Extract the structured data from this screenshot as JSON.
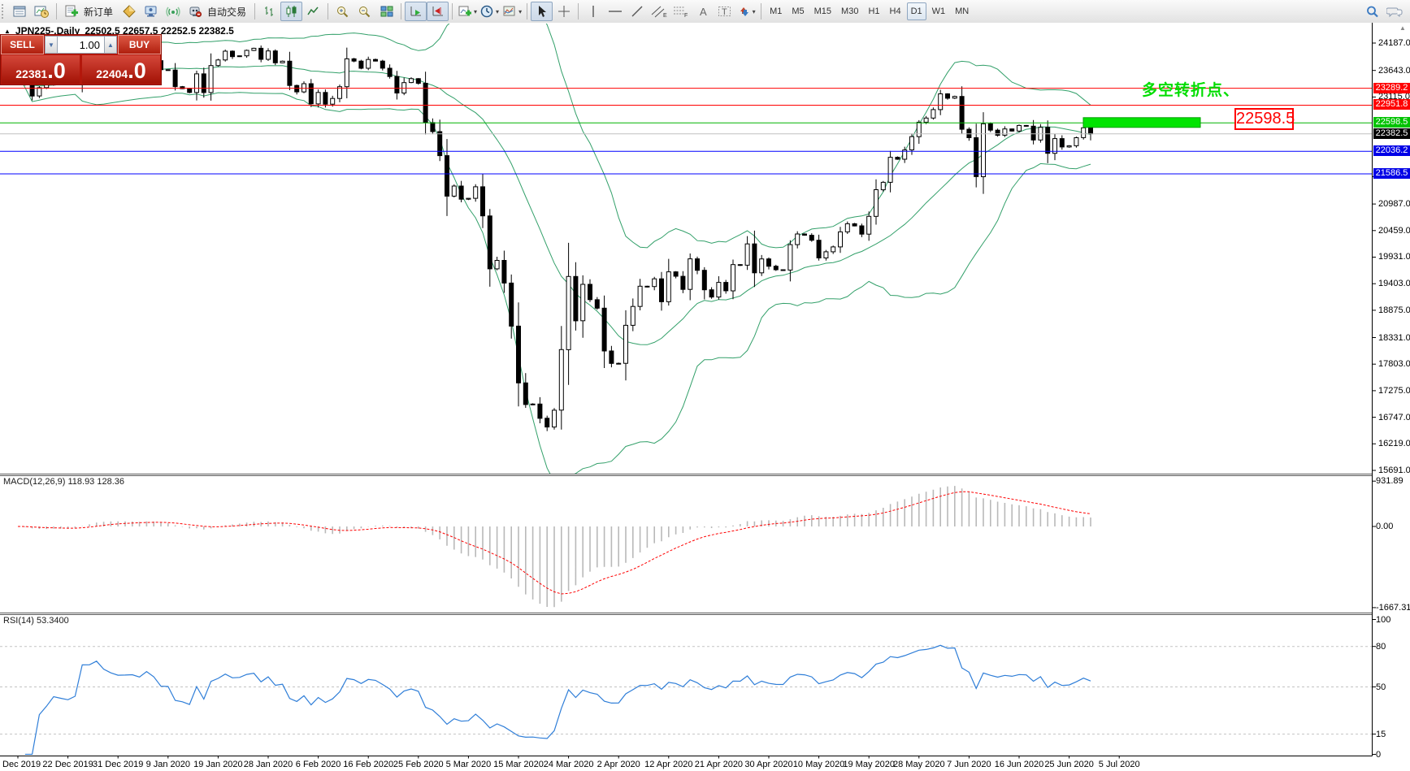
{
  "toolbar": {
    "new_order_label": "新订单",
    "auto_trading_label": "自动交易",
    "timeframes": [
      "M1",
      "M5",
      "M15",
      "M30",
      "H1",
      "H4",
      "D1",
      "W1",
      "MN"
    ],
    "active_timeframe": "D1"
  },
  "trade_panel": {
    "sell_label": "SELL",
    "buy_label": "BUY",
    "volume": "1.00",
    "sell_price_int": "22381",
    "sell_price_dec": ".0",
    "buy_price_int": "22404",
    "buy_price_dec": ".0"
  },
  "chart_header": {
    "title": "JPN225-,Daily",
    "ohlc": "22502.5 22657.5 22252.5 22382.5"
  },
  "price_axis": {
    "ticks": [
      "24187.0",
      "23643.0",
      "23115.0",
      "21531.0",
      "20987.0",
      "20459.0",
      "19931.0",
      "19403.0",
      "18875.0",
      "18331.0",
      "17803.0",
      "17275.0",
      "16747.0",
      "16219.0",
      "15691.0"
    ]
  },
  "levels": [
    {
      "label": "23289.2",
      "price": 23289.2,
      "line": "#ff0000",
      "badge": "#ff0000"
    },
    {
      "label": "22951.8",
      "price": 22951.8,
      "line": "#ff0000",
      "badge": "#ff0000"
    },
    {
      "label": "22598.5",
      "price": 22598.5,
      "line": "#00b400",
      "badge": "#00c300"
    },
    {
      "label": "22382.5",
      "price": 22382.5,
      "line": "#c0c0c0",
      "badge": "#000000"
    },
    {
      "label": "22036.2",
      "price": 22036.2,
      "line": "#0000ff",
      "badge": "#0000e6"
    },
    {
      "label": "21586.5",
      "price": 21586.5,
      "line": "#0000ff",
      "badge": "#0000e6"
    }
  ],
  "macd_pane": {
    "label": "MACD(12,26,9) 118.93 128.36",
    "axis": [
      "931.89",
      "0.00",
      "-1667.31"
    ],
    "axis_values": [
      931.89,
      0,
      -1667.31
    ]
  },
  "rsi_pane": {
    "label": "RSI(14) 53.3400",
    "axis": [
      "100",
      "80",
      "50",
      "15",
      "0"
    ],
    "axis_values": [
      100,
      80,
      50,
      15,
      0
    ],
    "grid_values": [
      80,
      50,
      15
    ]
  },
  "annotation": {
    "text": "多空转折点、",
    "box_label": "22598.5",
    "text_color": "#00dd00",
    "rect_color": "#00e400"
  },
  "colors": {
    "band_green": "#33a06a",
    "macd_hist": "#b9b9b9",
    "macd_signal": "#ff0000",
    "rsi_blue": "#2f7ed8",
    "panel_red": "#b3170b"
  },
  "chart_data": {
    "type": "candlestick",
    "symbol": "JPN225-",
    "period": "Daily",
    "last_bar": {
      "open": 22502.5,
      "high": 22657.5,
      "low": 22252.5,
      "close": 22382.5
    },
    "ylim": [
      15691,
      24558
    ],
    "grid": false,
    "indicators": [
      "Bollinger Bands(20,2)",
      "MACD(12,26,9)",
      "RSI(14)"
    ],
    "dates": [
      "2 Dec 2019",
      "22 Dec 2019",
      "31 Dec 2019",
      "9 Jan 2020",
      "19 Jan 2020",
      "28 Jan 2020",
      "6 Feb 2020",
      "16 Feb 2020",
      "25 Feb 2020",
      "5 Mar 2020",
      "15 Mar 2020",
      "24 Mar 2020",
      "2 Apr 2020",
      "12 Apr 2020",
      "21 Apr 2020",
      "30 Apr 2020",
      "10 May 2020",
      "19 May 2020",
      "28 May 2020",
      "7 Jun 2020",
      "16 Jun 2020",
      "25 Jun 2020",
      "5 Jul 2020"
    ],
    "closes": [
      23530,
      23380,
      23135,
      23300,
      23354,
      23430,
      23410,
      23391,
      23424,
      23950,
      23952,
      24066,
      23934,
      23864,
      23817,
      23821,
      23830,
      23790,
      23925,
      23837,
      23657,
      23650,
      23320,
      23280,
      23205,
      23575,
      23204,
      23740,
      23851,
      24025,
      23917,
      23933,
      24041,
      24084,
      23864,
      24031,
      23795,
      23827,
      23344,
      23216,
      23379,
      22978,
      23205,
      22972,
      23085,
      23320,
      23874,
      23828,
      23686,
      23861,
      23828,
      23687,
      23523,
      23194,
      23401,
      23479,
      23387,
      22605,
      22426,
      21948,
      21143,
      21344,
      21083,
      21100,
      21329,
      20750,
      19699,
      19867,
      19416,
      18560,
      17431,
      17002,
      17011,
      16727,
      16553,
      16888,
      18092,
      19547,
      18665,
      19389,
      19085,
      18917,
      18065,
      17818,
      17820,
      18576,
      18950,
      19353,
      19346,
      19499,
      19043,
      19638,
      19550,
      19290,
      19897,
      19669,
      19281,
      19138,
      19429,
      19262,
      19783,
      19771,
      20194,
      19619,
      19895,
      19750,
      19680,
      19675,
      20180,
      20391,
      20366,
      20267,
      19915,
      20037,
      20134,
      20433,
      20595,
      20552,
      20388,
      20741,
      21271,
      21419,
      21916,
      21878,
      22062,
      22326,
      22614,
      22696,
      22864,
      23178,
      23091,
      23125,
      22473,
      22305,
      21531,
      22582,
      22456,
      22355,
      22479,
      22437,
      22549,
      22534,
      22260,
      22512,
      21995,
      22288,
      22122,
      22146,
      22306,
      22502,
      22382.5
    ]
  }
}
